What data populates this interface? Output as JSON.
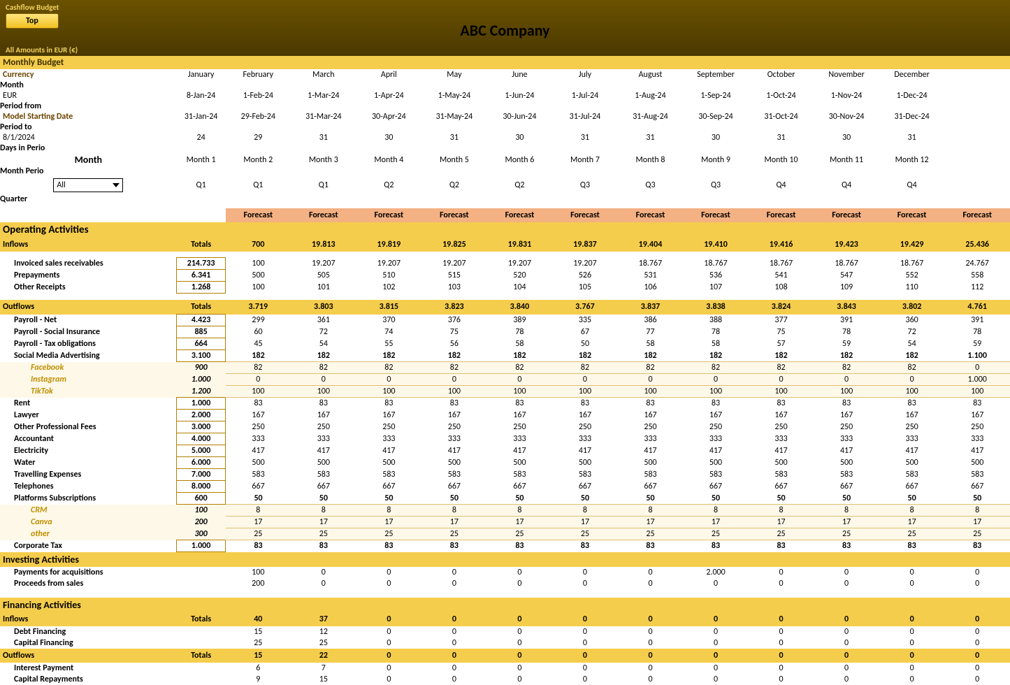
{
  "header": {
    "cashflow_label": "Cashflow Budget",
    "top_button": "Top",
    "company": "ABC Company",
    "amounts_label": "All Amounts in  EUR (€)"
  },
  "meta": {
    "monthly_budget_label": "Monthly Budget",
    "currency_label": "Currency",
    "currency_value": "EUR",
    "model_starting_label": "Model Starting Date",
    "model_starting_value": "8/1/2024",
    "month_filter_label": "Month",
    "month_filter_value": "All",
    "row_labels": [
      "Month",
      "Period from",
      "Period to",
      "Days in Perio",
      "Month Perio",
      "Quarter"
    ],
    "months": [
      "January",
      "February",
      "March",
      "April",
      "May",
      "June",
      "July",
      "August",
      "September",
      "October",
      "November",
      "December"
    ],
    "period_from": [
      "8-Jan-24",
      "1-Feb-24",
      "1-Mar-24",
      "1-Apr-24",
      "1-May-24",
      "1-Jun-24",
      "1-Jul-24",
      "1-Aug-24",
      "1-Sep-24",
      "1-Oct-24",
      "1-Nov-24",
      "1-Dec-24"
    ],
    "period_to": [
      "31-Jan-24",
      "29-Feb-24",
      "31-Mar-24",
      "30-Apr-24",
      "31-May-24",
      "30-Jun-24",
      "31-Jul-24",
      "31-Aug-24",
      "30-Sep-24",
      "31-Oct-24",
      "30-Nov-24",
      "31-Dec-24"
    ],
    "days": [
      "24",
      "29",
      "31",
      "30",
      "31",
      "30",
      "31",
      "31",
      "30",
      "31",
      "30",
      "31"
    ],
    "month_period": [
      "Month 1",
      "Month 2",
      "Month 3",
      "Month 4",
      "Month 5",
      "Month 6",
      "Month 7",
      "Month 8",
      "Month 9",
      "Month 10",
      "Month 11",
      "Month 12"
    ],
    "quarter": [
      "Q1",
      "Q1",
      "Q1",
      "Q2",
      "Q2",
      "Q2",
      "Q3",
      "Q3",
      "Q3",
      "Q4",
      "Q4",
      "Q4"
    ],
    "forecast_label": "Forecast"
  },
  "operating": {
    "title": "Operating  Activities",
    "inflows_label": "Inflows",
    "totals_label": "Totals",
    "inflows_totals": [
      "700",
      "19.813",
      "19.819",
      "19.825",
      "19.831",
      "19.837",
      "19.404",
      "19.410",
      "19.416",
      "19.423",
      "19.429",
      "25.436"
    ],
    "inflow_rows": [
      {
        "label": "Invoiced sales receivables",
        "total": "214.733",
        "v": [
          "100",
          "19.207",
          "19.207",
          "19.207",
          "19.207",
          "19.207",
          "18.767",
          "18.767",
          "18.767",
          "18.767",
          "18.767",
          "24.767"
        ]
      },
      {
        "label": "Prepayments",
        "total": "6.341",
        "v": [
          "500",
          "505",
          "510",
          "515",
          "520",
          "526",
          "531",
          "536",
          "541",
          "547",
          "552",
          "558"
        ]
      },
      {
        "label": "Other Receipts",
        "total": "1.268",
        "v": [
          "100",
          "101",
          "102",
          "103",
          "104",
          "105",
          "106",
          "107",
          "108",
          "109",
          "110",
          "112"
        ]
      }
    ],
    "outflows_label": "Outflows",
    "outflows_totals": [
      "3.719",
      "3.803",
      "3.815",
      "3.823",
      "3.840",
      "3.767",
      "3.837",
      "3.838",
      "3.824",
      "3.843",
      "3.802",
      "4.761"
    ],
    "outflow_rows": [
      {
        "label": "Payroll - Net",
        "total": "4.423",
        "v": [
          "299",
          "361",
          "370",
          "376",
          "389",
          "335",
          "386",
          "388",
          "377",
          "391",
          "360",
          "391"
        ]
      },
      {
        "label": "Payroll - Social Insurance",
        "total": "885",
        "v": [
          "60",
          "72",
          "74",
          "75",
          "78",
          "67",
          "77",
          "78",
          "75",
          "78",
          "72",
          "78"
        ]
      },
      {
        "label": "Payroll - Tax obligations",
        "total": "664",
        "v": [
          "45",
          "54",
          "55",
          "56",
          "58",
          "50",
          "58",
          "58",
          "57",
          "59",
          "54",
          "59"
        ]
      },
      {
        "label": "Social Media Advertising",
        "total": "3.100",
        "bold": true,
        "v": [
          "182",
          "182",
          "182",
          "182",
          "182",
          "182",
          "182",
          "182",
          "182",
          "182",
          "182",
          "1.100"
        ]
      },
      {
        "label": "Facebook",
        "total": "900",
        "sub": true,
        "v": [
          "82",
          "82",
          "82",
          "82",
          "82",
          "82",
          "82",
          "82",
          "82",
          "82",
          "82",
          "0"
        ]
      },
      {
        "label": "Instagram",
        "total": "1.000",
        "sub": true,
        "v": [
          "0",
          "0",
          "0",
          "0",
          "0",
          "0",
          "0",
          "0",
          "0",
          "0",
          "0",
          "1.000"
        ]
      },
      {
        "label": "TikTok",
        "total": "1.200",
        "sub": true,
        "v": [
          "100",
          "100",
          "100",
          "100",
          "100",
          "100",
          "100",
          "100",
          "100",
          "100",
          "100",
          "100"
        ]
      },
      {
        "label": "Rent",
        "total": "1.000",
        "v": [
          "83",
          "83",
          "83",
          "83",
          "83",
          "83",
          "83",
          "83",
          "83",
          "83",
          "83",
          "83"
        ]
      },
      {
        "label": "Lawyer",
        "total": "2.000",
        "v": [
          "167",
          "167",
          "167",
          "167",
          "167",
          "167",
          "167",
          "167",
          "167",
          "167",
          "167",
          "167"
        ]
      },
      {
        "label": "Other Professional Fees",
        "total": "3.000",
        "v": [
          "250",
          "250",
          "250",
          "250",
          "250",
          "250",
          "250",
          "250",
          "250",
          "250",
          "250",
          "250"
        ]
      },
      {
        "label": "Accountant",
        "total": "4.000",
        "v": [
          "333",
          "333",
          "333",
          "333",
          "333",
          "333",
          "333",
          "333",
          "333",
          "333",
          "333",
          "333"
        ]
      },
      {
        "label": "Electricity",
        "total": "5.000",
        "v": [
          "417",
          "417",
          "417",
          "417",
          "417",
          "417",
          "417",
          "417",
          "417",
          "417",
          "417",
          "417"
        ]
      },
      {
        "label": "Water",
        "total": "6.000",
        "v": [
          "500",
          "500",
          "500",
          "500",
          "500",
          "500",
          "500",
          "500",
          "500",
          "500",
          "500",
          "500"
        ]
      },
      {
        "label": "Travelling Expenses",
        "total": "7.000",
        "v": [
          "583",
          "583",
          "583",
          "583",
          "583",
          "583",
          "583",
          "583",
          "583",
          "583",
          "583",
          "583"
        ]
      },
      {
        "label": "Telephones",
        "total": "8.000",
        "v": [
          "667",
          "667",
          "667",
          "667",
          "667",
          "667",
          "667",
          "667",
          "667",
          "667",
          "667",
          "667"
        ]
      },
      {
        "label": "Platforms Subscriptions",
        "total": "600",
        "bold": true,
        "v": [
          "50",
          "50",
          "50",
          "50",
          "50",
          "50",
          "50",
          "50",
          "50",
          "50",
          "50",
          "50"
        ]
      },
      {
        "label": "CRM",
        "total": "100",
        "sub": true,
        "v": [
          "8",
          "8",
          "8",
          "8",
          "8",
          "8",
          "8",
          "8",
          "8",
          "8",
          "8",
          "8"
        ]
      },
      {
        "label": "Canva",
        "total": "200",
        "sub": true,
        "v": [
          "17",
          "17",
          "17",
          "17",
          "17",
          "17",
          "17",
          "17",
          "17",
          "17",
          "17",
          "17"
        ]
      },
      {
        "label": "other",
        "total": "300",
        "sub": true,
        "v": [
          "25",
          "25",
          "25",
          "25",
          "25",
          "25",
          "25",
          "25",
          "25",
          "25",
          "25",
          "25"
        ]
      },
      {
        "label": "Corporate Tax",
        "total": "1.000",
        "bold": true,
        "v": [
          "83",
          "83",
          "83",
          "83",
          "83",
          "83",
          "83",
          "83",
          "83",
          "83",
          "83",
          "83"
        ]
      }
    ]
  },
  "investing": {
    "title": "Investing Activities",
    "rows": [
      {
        "label": "Payments for acquisitions",
        "v": [
          "100",
          "0",
          "0",
          "0",
          "0",
          "0",
          "0",
          "2.000",
          "0",
          "0",
          "0",
          "0"
        ]
      },
      {
        "label": "Proceeds from sales",
        "v": [
          "200",
          "0",
          "0",
          "0",
          "0",
          "0",
          "0",
          "0",
          "0",
          "0",
          "0",
          "0"
        ]
      }
    ]
  },
  "financing": {
    "title": "Financing Activities",
    "inflows_label": "Inflows",
    "inflows_totals": [
      "40",
      "37",
      "0",
      "0",
      "0",
      "0",
      "0",
      "0",
      "0",
      "0",
      "0",
      "0"
    ],
    "inflow_rows": [
      {
        "label": "Debt Financing",
        "v": [
          "15",
          "12",
          "0",
          "0",
          "0",
          "0",
          "0",
          "0",
          "0",
          "0",
          "0",
          "0"
        ]
      },
      {
        "label": "Capital Financing",
        "v": [
          "25",
          "25",
          "0",
          "0",
          "0",
          "0",
          "0",
          "0",
          "0",
          "0",
          "0",
          "0"
        ]
      }
    ],
    "outflows_label": "Outflows",
    "outflows_totals": [
      "15",
      "22",
      "0",
      "0",
      "0",
      "0",
      "0",
      "0",
      "0",
      "0",
      "0",
      "0"
    ],
    "outflow_rows": [
      {
        "label": "Interest Payment",
        "v": [
          "6",
          "7",
          "0",
          "0",
          "0",
          "0",
          "0",
          "0",
          "0",
          "0",
          "0",
          "0"
        ]
      },
      {
        "label": "Capital Repayments",
        "v": [
          "9",
          "15",
          "0",
          "0",
          "0",
          "0",
          "0",
          "0",
          "0",
          "0",
          "0",
          "0"
        ]
      }
    ]
  },
  "colors": {
    "yellow": "#f5cd4c",
    "peach": "#f4b183",
    "brown_text": "#6b4500"
  }
}
